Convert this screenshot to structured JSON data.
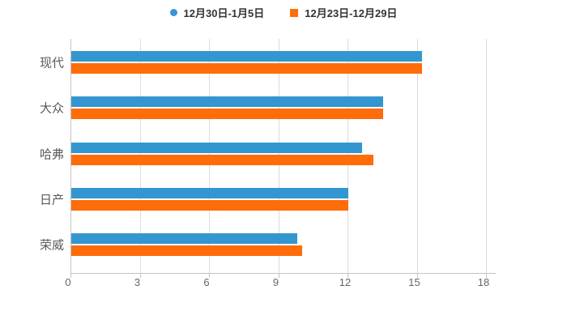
{
  "chart_data": {
    "type": "bar",
    "orientation": "horizontal",
    "title": "",
    "xlabel": "",
    "ylabel": "",
    "categories": [
      "现代",
      "大众",
      "哈弗",
      "日产",
      "荣威"
    ],
    "series": [
      {
        "name": "12月30日-1月5日",
        "marker": "circle",
        "color": "#3496D0",
        "values": [
          15.2,
          13.5,
          12.6,
          12.0,
          9.8
        ]
      },
      {
        "name": "12月23日-12月29日",
        "marker": "square",
        "color": "#FF6C0A",
        "values": [
          15.2,
          13.5,
          13.1,
          12.0,
          10.0
        ]
      }
    ],
    "x_ticks": [
      0,
      3,
      6,
      9,
      12,
      15,
      18
    ],
    "xlim": [
      0,
      18
    ],
    "grid": "vertical",
    "legend_position": "top-center",
    "colors": {
      "background": "#ffffff",
      "axis_line": "#c4c4c4",
      "grid_line": "#dcdcdc",
      "tick_label": "#666666",
      "category_label": "#595959",
      "legend_text": "#333333"
    }
  }
}
